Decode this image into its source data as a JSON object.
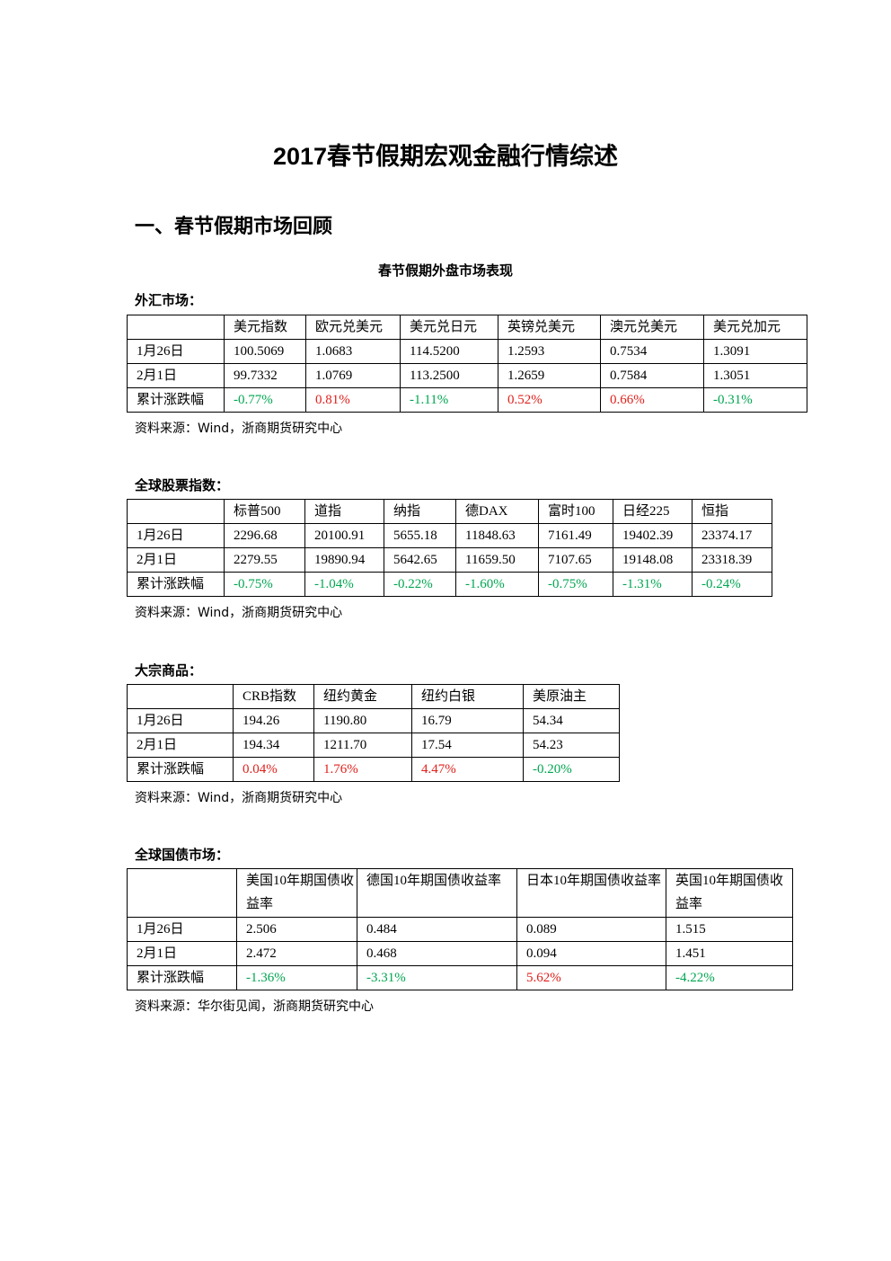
{
  "title": "2017春节假期宏观金融行情综述",
  "section": "一、春节假期市场回顾",
  "subtitle": "春节假期外盘市场表现",
  "tables": [
    {
      "label": "外汇市场：",
      "columns": [
        "美元指数",
        "欧元兑美元",
        "美元兑日元",
        "英镑兑美元",
        "澳元兑美元",
        "美元兑加元"
      ],
      "rows": [
        {
          "label": "1月26日",
          "cells": [
            "100.5069",
            "1.0683",
            "114.5200",
            "1.2593",
            "0.7534",
            "1.3091"
          ]
        },
        {
          "label": "2月1日",
          "cells": [
            "99.7332",
            "1.0769",
            "113.2500",
            "1.2659",
            "0.7584",
            "1.3051"
          ]
        },
        {
          "label": "累计涨跌幅",
          "cells": [
            "-0.77%",
            "0.81%",
            "-1.11%",
            "0.52%",
            "0.66%",
            "-0.31%"
          ]
        }
      ],
      "source": "资料来源：Wind，浙商期货研究中心"
    },
    {
      "label": "全球股票指数：",
      "columns": [
        "标普500",
        "道指",
        "纳指",
        "德DAX",
        "富时100",
        "日经225",
        "恒指"
      ],
      "rows": [
        {
          "label": "1月26日",
          "cells": [
            "2296.68",
            "20100.91",
            "5655.18",
            "11848.63",
            "7161.49",
            "19402.39",
            "23374.17"
          ]
        },
        {
          "label": "2月1日",
          "cells": [
            "2279.55",
            "19890.94",
            "5642.65",
            "11659.50",
            "7107.65",
            "19148.08",
            "23318.39"
          ]
        },
        {
          "label": "累计涨跌幅",
          "cells": [
            "-0.75%",
            "-1.04%",
            "-0.22%",
            "-1.60%",
            "-0.75%",
            "-1.31%",
            "-0.24%"
          ]
        }
      ],
      "source": "资料来源：Wind，浙商期货研究中心"
    },
    {
      "label": "大宗商品：",
      "columns": [
        "CRB指数",
        "纽约黄金",
        "纽约白银",
        "美原油主"
      ],
      "rows": [
        {
          "label": "1月26日",
          "cells": [
            "194.26",
            "1190.80",
            "16.79",
            "54.34"
          ]
        },
        {
          "label": "2月1日",
          "cells": [
            "194.34",
            "1211.70",
            "17.54",
            "54.23"
          ]
        },
        {
          "label": "累计涨跌幅",
          "cells": [
            "0.04%",
            "1.76%",
            "4.47%",
            "-0.20%"
          ]
        }
      ],
      "source": "资料来源：Wind，浙商期货研究中心"
    },
    {
      "label": "全球国债市场：",
      "columns": [
        "美国10年期国债收益率",
        "德国10年期国债收益率",
        "日本10年期国债收益率",
        "英国10年期国债收益率"
      ],
      "rows": [
        {
          "label": "1月26日",
          "cells": [
            "2.506",
            "0.484",
            "0.089",
            "1.515"
          ]
        },
        {
          "label": "2月1日",
          "cells": [
            "2.472",
            "0.468",
            "0.094",
            "1.451"
          ]
        },
        {
          "label": "累计涨跌幅",
          "cells": [
            "-1.36%",
            "-3.31%",
            "5.62%",
            "-4.22%"
          ]
        }
      ],
      "source": "资料来源：华尔街见闻，浙商期货研究中心"
    }
  ]
}
